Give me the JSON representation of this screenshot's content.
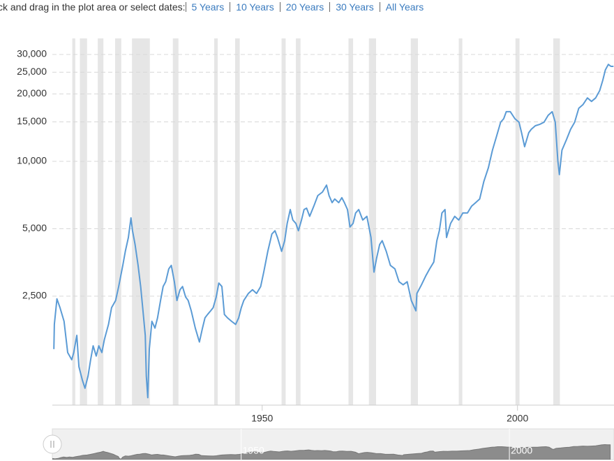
{
  "toolbar": {
    "prompt": "ck and drag in the plot area or select dates:",
    "ranges": [
      "5 Years",
      "10 Years",
      "20 Years",
      "30 Years",
      "All Years"
    ]
  },
  "chart_data": {
    "type": "line",
    "yscale": "log",
    "color": "#5b9bd5",
    "band_color": "#e6e6e6",
    "grid": true,
    "xlim": [
      1908.9,
      2018.9
    ],
    "xticks": [
      1950,
      2000
    ],
    "ylim": [
      815,
      35400
    ],
    "yticks": [
      {
        "value": 2500,
        "label": "2,500"
      },
      {
        "value": 5000,
        "label": "5,000"
      },
      {
        "value": 10000,
        "label": "10,000"
      },
      {
        "value": 15000,
        "label": "15,000"
      },
      {
        "value": 20000,
        "label": "20,000"
      },
      {
        "value": 25000,
        "label": "25,000"
      },
      {
        "value": 30000,
        "label": "30,000"
      }
    ],
    "navigator_xlim": [
      1914.8,
      2019.5
    ],
    "recessions": [
      [
        1912.8,
        1913.4
      ],
      [
        1914.3,
        1915.7
      ],
      [
        1917.8,
        1918.9
      ],
      [
        1921.2,
        1922.4
      ],
      [
        1924.5,
        1928.0
      ],
      [
        1932.5,
        1933.6
      ],
      [
        1940.6,
        1941.3
      ],
      [
        1944.7,
        1945.6
      ],
      [
        1953.8,
        1954.6
      ],
      [
        1956.6,
        1957.5
      ],
      [
        1966.9,
        1967.8
      ],
      [
        1970.9,
        1972.3
      ],
      [
        1979.1,
        1980.5
      ],
      [
        1988.5,
        1989.2
      ],
      [
        1999.6,
        2000.4
      ],
      [
        2007.0,
        2008.3
      ]
    ],
    "x": [
      1909.2,
      1909.3,
      1909.8,
      1910.4,
      1911.2,
      1911.9,
      1912.7,
      1913.1,
      1913.7,
      1914.1,
      1914.8,
      1915.3,
      1915.9,
      1916.4,
      1916.9,
      1917.5,
      1918.0,
      1918.6,
      1919.1,
      1919.9,
      1920.5,
      1921.3,
      1921.9,
      1922.7,
      1923.2,
      1923.8,
      1924.3,
      1924.6,
      1925.1,
      1925.7,
      1926.2,
      1926.6,
      1927.1,
      1927.3,
      1927.6,
      1927.9,
      1928.4,
      1929.0,
      1929.5,
      1930.1,
      1930.6,
      1931.1,
      1931.7,
      1932.2,
      1932.8,
      1933.3,
      1933.9,
      1934.4,
      1935.0,
      1935.5,
      1936.1,
      1936.9,
      1937.7,
      1938.3,
      1938.8,
      1939.3,
      1939.9,
      1940.4,
      1941.0,
      1941.5,
      1942.1,
      1942.6,
      1943.2,
      1944.0,
      1944.8,
      1945.4,
      1945.9,
      1946.4,
      1947.3,
      1948.1,
      1948.9,
      1949.7,
      1950.3,
      1951.1,
      1951.9,
      1952.5,
      1953.0,
      1953.8,
      1954.4,
      1954.9,
      1955.5,
      1956.0,
      1956.6,
      1957.1,
      1957.7,
      1958.2,
      1958.7,
      1959.3,
      1960.1,
      1960.9,
      1961.8,
      1962.6,
      1963.1,
      1963.7,
      1964.2,
      1965.0,
      1965.6,
      1966.1,
      1966.7,
      1967.2,
      1967.8,
      1968.3,
      1968.9,
      1969.7,
      1970.5,
      1971.3,
      1971.9,
      1972.4,
      1973.0,
      1973.5,
      1974.3,
      1975.1,
      1976.0,
      1976.8,
      1977.6,
      1978.4,
      1979.2,
      1980.1,
      1980.3,
      1981.2,
      1982.0,
      1982.8,
      1983.6,
      1984.2,
      1984.7,
      1985.2,
      1985.8,
      1986.1,
      1986.9,
      1987.7,
      1988.5,
      1989.3,
      1990.2,
      1991.0,
      1991.8,
      1992.6,
      1993.4,
      1994.3,
      1995.1,
      1995.9,
      1996.7,
      1997.3,
      1997.8,
      1998.6,
      1999.5,
      2000.3,
      2000.8,
      2001.4,
      2002.2,
      2002.7,
      2003.5,
      2004.4,
      2005.2,
      2006.0,
      2006.8,
      2007.4,
      2007.9,
      2008.2,
      2008.7,
      2009.6,
      2010.4,
      2011.2,
      2012.0,
      2012.8,
      2013.7,
      2014.5,
      2015.3,
      2016.1,
      2016.7,
      2017.2,
      2017.8,
      2018.3,
      2018.8
    ],
    "values": [
      1450,
      1870,
      2430,
      2220,
      1930,
      1400,
      1300,
      1400,
      1670,
      1210,
      1050,
      970,
      1100,
      1300,
      1500,
      1350,
      1500,
      1400,
      1600,
      1870,
      2220,
      2390,
      2760,
      3430,
      3960,
      4570,
      5590,
      4900,
      4250,
      3430,
      2760,
      2220,
      1670,
      1100,
      880,
      1450,
      1930,
      1800,
      2000,
      2390,
      2760,
      2900,
      3310,
      3430,
      2900,
      2390,
      2670,
      2760,
      2480,
      2390,
      2150,
      1800,
      1560,
      1800,
      2000,
      2070,
      2150,
      2220,
      2480,
      2860,
      2760,
      2070,
      2000,
      1930,
      1870,
      2000,
      2220,
      2390,
      2570,
      2670,
      2570,
      2760,
      3200,
      3960,
      4740,
      4900,
      4570,
      3960,
      4420,
      5280,
      6090,
      5470,
      5280,
      4900,
      5470,
      6090,
      6180,
      5680,
      6300,
      7030,
      7290,
      7830,
      7030,
      6540,
      6790,
      6540,
      6880,
      6540,
      6090,
      5090,
      5280,
      5880,
      6090,
      5470,
      5680,
      4570,
      3200,
      3690,
      4250,
      4420,
      3960,
      3430,
      3310,
      2900,
      2810,
      2900,
      2390,
      2150,
      2570,
      2810,
      3070,
      3310,
      3550,
      4420,
      4900,
      5880,
      6090,
      4570,
      5280,
      5680,
      5470,
      5880,
      5880,
      6300,
      6540,
      6790,
      8120,
      9370,
      11220,
      12950,
      14950,
      15500,
      16660,
      16660,
      15500,
      14950,
      13420,
      11630,
      13420,
      13900,
      14420,
      14640,
      14950,
      16050,
      16660,
      14950,
      10070,
      8720,
      11220,
      12500,
      13900,
      14950,
      17260,
      17900,
      19200,
      18520,
      19200,
      20700,
      23000,
      25600,
      27100,
      26550,
      26550
    ]
  }
}
